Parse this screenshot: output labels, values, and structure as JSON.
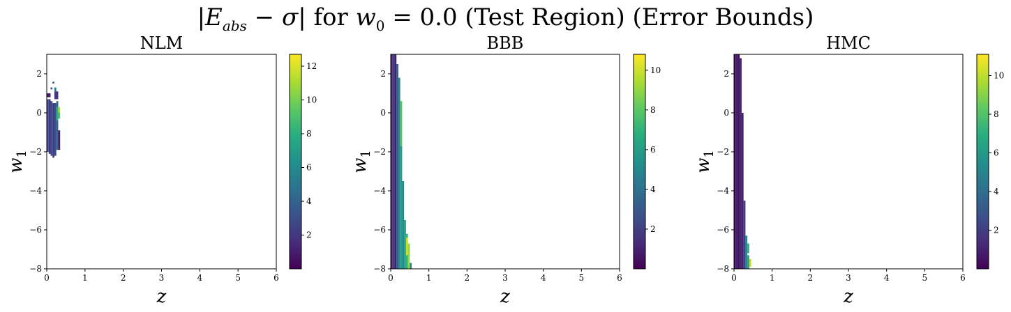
{
  "chart_data": {
    "type": "heatmap",
    "suptitle": "|E_abs − σ| for w0 = 0.0 (Test Region) (Error Bounds)",
    "panels": [
      {
        "title": "NLM",
        "xlabel": "z",
        "ylabel": "w1",
        "xlim": [
          0,
          6
        ],
        "ylim": [
          -8,
          3
        ],
        "xticks": [
          0,
          1,
          2,
          3,
          4,
          5,
          6
        ],
        "yticks": [
          -8,
          -6,
          -4,
          -2,
          0,
          2
        ],
        "colorbar": {
          "min": 0,
          "max": 12.7,
          "ticks": [
            2,
            4,
            6,
            8,
            10,
            12
          ]
        },
        "cells": [
          {
            "x0": 0.15,
            "x1": 0.2,
            "y0": 1.5,
            "y1": 1.6,
            "v": 5
          },
          {
            "x0": 0.1,
            "x1": 0.15,
            "y0": 1.2,
            "y1": 1.3,
            "v": 3
          },
          {
            "x0": 0.2,
            "x1": 0.25,
            "y0": 1.1,
            "y1": 1.3,
            "v": 5
          },
          {
            "x0": 0.0,
            "x1": 0.1,
            "y0": 0.8,
            "y1": 1.0,
            "v": 1
          },
          {
            "x0": 0.2,
            "x1": 0.3,
            "y0": 0.7,
            "y1": 1.1,
            "v": 2
          },
          {
            "x0": 0.0,
            "x1": 0.05,
            "y0": -2.0,
            "y1": 0.7,
            "v": 3
          },
          {
            "x0": 0.05,
            "x1": 0.1,
            "y0": -2.1,
            "y1": 0.7,
            "v": 2
          },
          {
            "x0": 0.1,
            "x1": 0.15,
            "y0": -2.2,
            "y1": 0.6,
            "v": 3
          },
          {
            "x0": 0.15,
            "x1": 0.2,
            "y0": -2.3,
            "y1": 0.5,
            "v": 2
          },
          {
            "x0": 0.2,
            "x1": 0.25,
            "y0": -2.2,
            "y1": 0.5,
            "v": 3
          },
          {
            "x0": 0.25,
            "x1": 0.3,
            "y0": -1.9,
            "y1": 0.6,
            "v": 4
          },
          {
            "x0": 0.3,
            "x1": 0.35,
            "y0": -1.9,
            "y1": -0.9,
            "v": 1
          },
          {
            "x0": 0.25,
            "x1": 0.3,
            "y0": -0.4,
            "y1": 0.3,
            "v": 8
          },
          {
            "x0": 0.3,
            "x1": 0.35,
            "y0": 0.0,
            "y1": 0.3,
            "v": 11
          },
          {
            "x0": 0.3,
            "x1": 0.35,
            "y0": -0.3,
            "y1": 0.0,
            "v": 9
          }
        ]
      },
      {
        "title": "BBB",
        "xlabel": "z",
        "ylabel": "w1",
        "xlim": [
          0,
          6
        ],
        "ylim": [
          -8,
          3
        ],
        "xticks": [
          0,
          1,
          2,
          3,
          4,
          5,
          6
        ],
        "yticks": [
          -8,
          -6,
          -4,
          -2,
          0,
          2
        ],
        "colorbar": {
          "min": 0,
          "max": 10.8,
          "ticks": [
            2,
            4,
            6,
            8,
            10
          ]
        },
        "cells": [
          {
            "x0": 0.0,
            "x1": 0.05,
            "y0": -8.0,
            "y1": 3.0,
            "v": 1
          },
          {
            "x0": 0.05,
            "x1": 0.1,
            "y0": -8.0,
            "y1": 3.0,
            "v": 2
          },
          {
            "x0": 0.1,
            "x1": 0.15,
            "y0": -8.0,
            "y1": 3.0,
            "v": 1
          },
          {
            "x0": 0.15,
            "x1": 0.2,
            "y0": -8.0,
            "y1": 2.5,
            "v": 3
          },
          {
            "x0": 0.2,
            "x1": 0.25,
            "y0": -8.0,
            "y1": 1.8,
            "v": 5
          },
          {
            "x0": 0.25,
            "x1": 0.3,
            "y0": -8.0,
            "y1": -1.7,
            "v": 6
          },
          {
            "x0": 0.25,
            "x1": 0.3,
            "y0": -1.7,
            "y1": 0.6,
            "v": 8
          },
          {
            "x0": 0.3,
            "x1": 0.35,
            "y0": -8.0,
            "y1": -3.5,
            "v": 5
          },
          {
            "x0": 0.35,
            "x1": 0.4,
            "y0": -8.0,
            "y1": -5.5,
            "v": 6
          },
          {
            "x0": 0.4,
            "x1": 0.45,
            "y0": -8.0,
            "y1": -6.2,
            "v": 7
          },
          {
            "x0": 0.4,
            "x1": 0.45,
            "y0": -7.3,
            "y1": -6.4,
            "v": 10
          },
          {
            "x0": 0.45,
            "x1": 0.5,
            "y0": -8.0,
            "y1": -6.7,
            "v": 9
          },
          {
            "x0": 0.5,
            "x1": 0.55,
            "y0": -8.0,
            "y1": -7.7,
            "v": 5
          }
        ]
      },
      {
        "title": "HMC",
        "xlabel": "z",
        "ylabel": "w1",
        "xlim": [
          0,
          6
        ],
        "ylim": [
          -8,
          3
        ],
        "xticks": [
          0,
          1,
          2,
          3,
          4,
          5,
          6
        ],
        "yticks": [
          -8,
          -6,
          -4,
          -2,
          0,
          2
        ],
        "colorbar": {
          "min": 0,
          "max": 11.1,
          "ticks": [
            2,
            4,
            6,
            8,
            10
          ]
        },
        "cells": [
          {
            "x0": 0.0,
            "x1": 0.05,
            "y0": -8.0,
            "y1": 3.0,
            "v": 0.5
          },
          {
            "x0": 0.05,
            "x1": 0.1,
            "y0": -8.0,
            "y1": 3.0,
            "v": 1
          },
          {
            "x0": 0.1,
            "x1": 0.15,
            "y0": -8.0,
            "y1": 3.0,
            "v": 0.5
          },
          {
            "x0": 0.15,
            "x1": 0.2,
            "y0": -8.0,
            "y1": 2.8,
            "v": 1
          },
          {
            "x0": 0.2,
            "x1": 0.25,
            "y0": -8.0,
            "y1": 0.0,
            "v": 1
          },
          {
            "x0": 0.25,
            "x1": 0.3,
            "y0": -8.0,
            "y1": -4.5,
            "v": 2
          },
          {
            "x0": 0.3,
            "x1": 0.35,
            "y0": -8.0,
            "y1": -6.3,
            "v": 5
          },
          {
            "x0": 0.35,
            "x1": 0.4,
            "y0": -7.2,
            "y1": -6.7,
            "v": 7
          },
          {
            "x0": 0.35,
            "x1": 0.4,
            "y0": -8.0,
            "y1": -7.3,
            "v": 6
          },
          {
            "x0": 0.4,
            "x1": 0.45,
            "y0": -7.9,
            "y1": -7.5,
            "v": 10
          }
        ]
      }
    ]
  }
}
